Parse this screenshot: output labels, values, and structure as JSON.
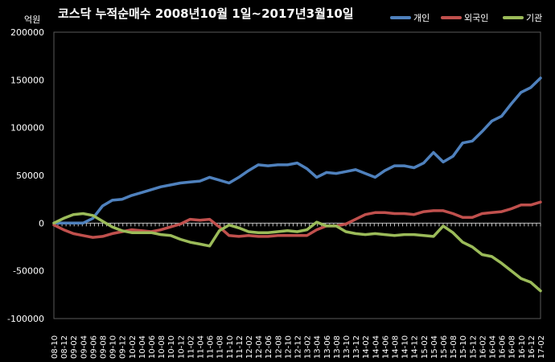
{
  "chart_data": {
    "type": "line",
    "title": "코스닥 누적순매수 2008년10월 1일~2017년3월10일",
    "unit_label": "억원",
    "ylim": [
      -100000,
      200000
    ],
    "y_ticks": [
      {
        "value": -100000,
        "label": "-100000"
      },
      {
        "value": -50000,
        "label": "-50000"
      },
      {
        "value": 0,
        "label": "0"
      },
      {
        "value": 50000,
        "label": "50000"
      },
      {
        "value": 100000,
        "label": "100000"
      },
      {
        "value": 150000,
        "label": "150000"
      },
      {
        "value": 200000,
        "label": "200000"
      }
    ],
    "x_ticks": [
      "08-10",
      "08-12",
      "09-02",
      "09-04",
      "09-06",
      "09-08",
      "09-10",
      "09-12",
      "10-02",
      "10-04",
      "10-06",
      "10-08",
      "10-10",
      "10-12",
      "11-02",
      "11-04",
      "11-06",
      "11-08",
      "11-10",
      "11-12",
      "12-02",
      "12-04",
      "12-06",
      "12-08",
      "12-10",
      "12-12",
      "13-02",
      "13-04",
      "13-06",
      "13-08",
      "13-10",
      "13-12",
      "14-02",
      "14-04",
      "14-06",
      "14-08",
      "14-10",
      "14-12",
      "15-02",
      "15-04",
      "15-06",
      "15-08",
      "15-10",
      "15-12",
      "16-02",
      "16-04",
      "16-06",
      "16-08",
      "16-10",
      "16-12",
      "17-02"
    ],
    "grid": false,
    "legend_position": "top-right",
    "series": [
      {
        "name": "개인",
        "color": "#4f81bd",
        "values": [
          0,
          0,
          0,
          0,
          5000,
          18000,
          24000,
          25000,
          29000,
          32000,
          35000,
          38000,
          40000,
          42000,
          43000,
          44000,
          48000,
          45000,
          42000,
          48000,
          55000,
          61000,
          60000,
          61000,
          61000,
          63000,
          57000,
          48000,
          53000,
          52000,
          54000,
          56000,
          52000,
          48000,
          55000,
          60000,
          60000,
          58000,
          63000,
          74000,
          64000,
          70000,
          84000,
          86000,
          96000,
          107000,
          112000,
          125000,
          137000,
          142000,
          152000
        ]
      },
      {
        "name": "외국인",
        "color": "#c0504d",
        "values": [
          -2000,
          -7000,
          -11000,
          -13000,
          -15000,
          -14000,
          -11000,
          -9000,
          -7000,
          -8000,
          -9000,
          -7000,
          -4000,
          -1000,
          4000,
          3000,
          4000,
          -4000,
          -13000,
          -14000,
          -13000,
          -14000,
          -14000,
          -13000,
          -13000,
          -13000,
          -13000,
          -7000,
          -3000,
          -3000,
          -1000,
          4000,
          9000,
          11000,
          11000,
          10000,
          10000,
          9000,
          12000,
          13000,
          13000,
          10000,
          6000,
          6000,
          10000,
          11000,
          12000,
          15000,
          19000,
          19000,
          22000
        ]
      },
      {
        "name": "기관",
        "color": "#9bbb59",
        "values": [
          0,
          5000,
          9000,
          10000,
          8000,
          2000,
          -4000,
          -8000,
          -10000,
          -10000,
          -10000,
          -12000,
          -13000,
          -17000,
          -20000,
          -22000,
          -24000,
          -8000,
          -2000,
          -5000,
          -9000,
          -10000,
          -10000,
          -9000,
          -8000,
          -9000,
          -7000,
          1000,
          -3000,
          -3000,
          -9000,
          -11000,
          -12000,
          -11000,
          -12000,
          -13000,
          -12000,
          -12000,
          -13000,
          -14000,
          -3000,
          -10000,
          -20000,
          -25000,
          -33000,
          -35000,
          -42000,
          -50000,
          -58000,
          -62000,
          -71000
        ]
      }
    ]
  }
}
